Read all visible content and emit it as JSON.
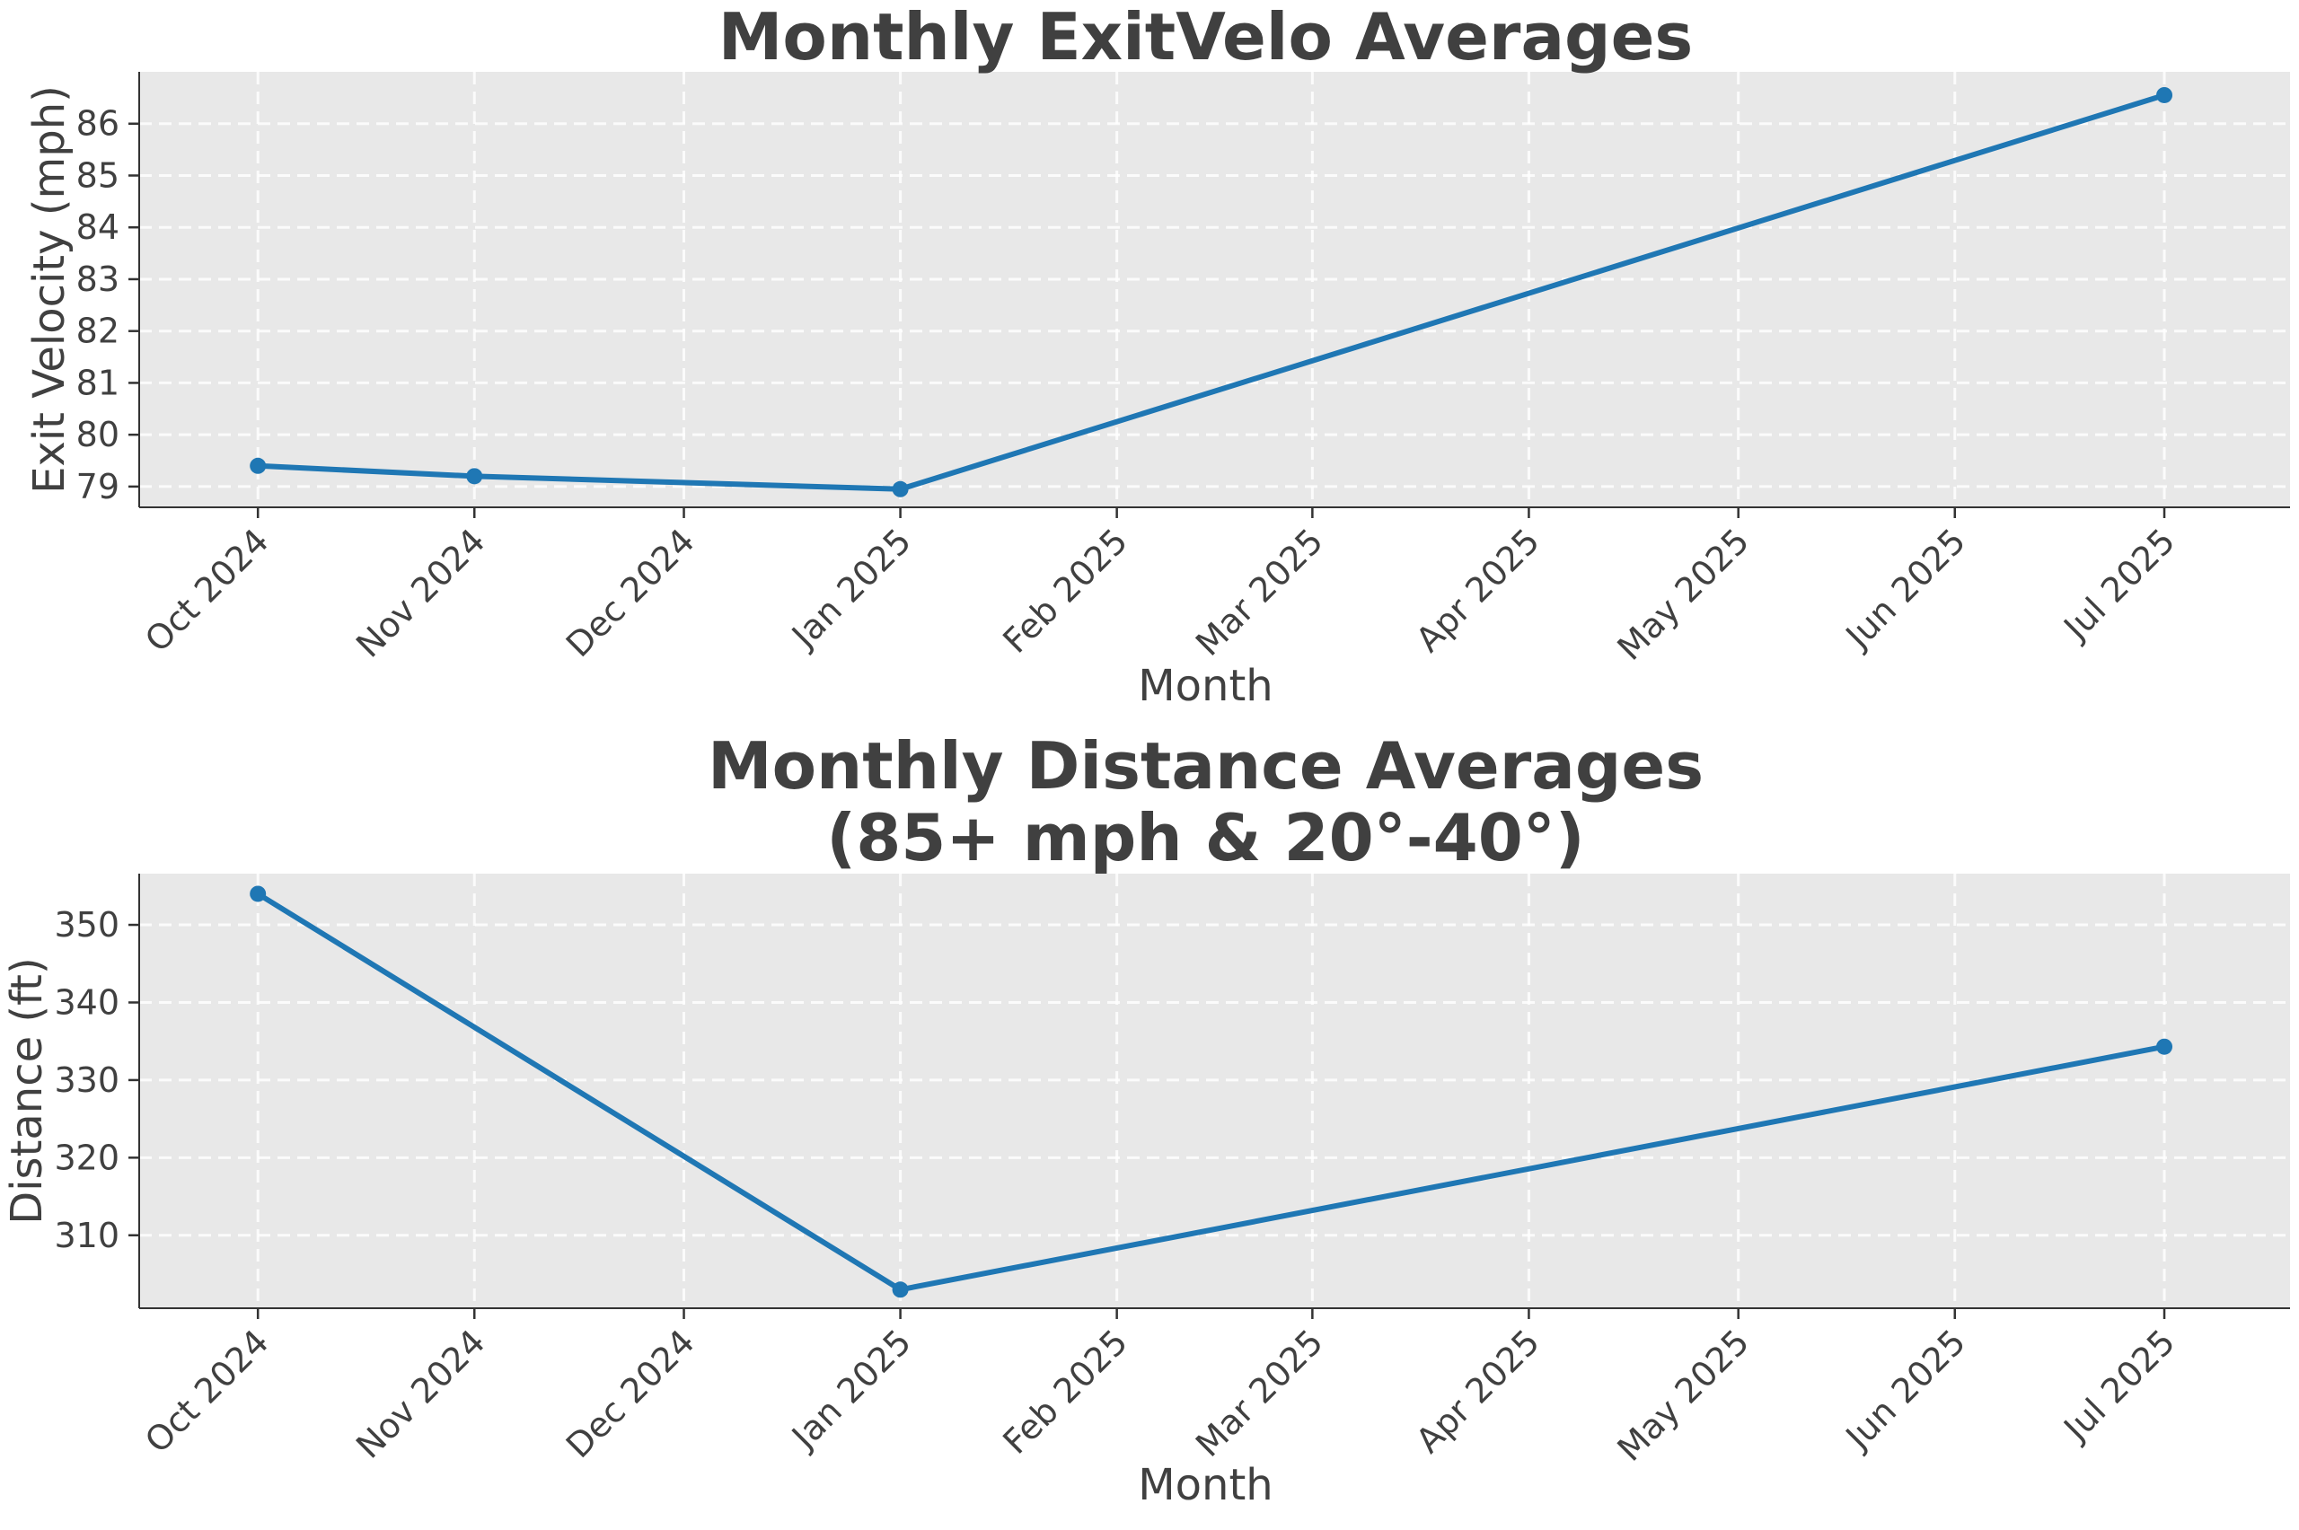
{
  "chart_data": [
    {
      "type": "line",
      "title": [
        "Monthly ExitVelo Averages"
      ],
      "xlabel": "Month",
      "ylabel": "Exit Velocity (mph)",
      "x_tick_labels": [
        "Oct 2024",
        "Nov 2024",
        "Dec 2024",
        "Jan 2025",
        "Feb 2025",
        "Mar 2025",
        "Apr 2025",
        "May 2025",
        "Jun 2025",
        "Jul 2025"
      ],
      "x_tick_dates": [
        "2024-10-01",
        "2024-11-01",
        "2024-12-01",
        "2025-01-01",
        "2025-02-01",
        "2025-03-01",
        "2025-04-01",
        "2025-05-01",
        "2025-06-01",
        "2025-07-01"
      ],
      "xlim": [
        "2024-09-14",
        "2025-07-19"
      ],
      "ylim": [
        78.6,
        87.0
      ],
      "y_ticks": [
        79,
        80,
        81,
        82,
        83,
        84,
        85,
        86
      ],
      "grid": true,
      "series": [
        {
          "color": "#1f77b4",
          "points": [
            {
              "x": "2024-10-01",
              "y": 79.4
            },
            {
              "x": "2024-11-01",
              "y": 79.2
            },
            {
              "x": "2025-01-01",
              "y": 78.95
            },
            {
              "x": "2025-07-01",
              "y": 86.55
            }
          ]
        }
      ]
    },
    {
      "type": "line",
      "title": [
        "Monthly Distance Averages",
        "(85+ mph & 20°-40°)"
      ],
      "xlabel": "Month",
      "ylabel": "Distance (ft)",
      "x_tick_labels": [
        "Oct 2024",
        "Nov 2024",
        "Dec 2024",
        "Jan 2025",
        "Feb 2025",
        "Mar 2025",
        "Apr 2025",
        "May 2025",
        "Jun 2025",
        "Jul 2025"
      ],
      "x_tick_dates": [
        "2024-10-01",
        "2024-11-01",
        "2024-12-01",
        "2025-01-01",
        "2025-02-01",
        "2025-03-01",
        "2025-04-01",
        "2025-05-01",
        "2025-06-01",
        "2025-07-01"
      ],
      "xlim": [
        "2024-09-14",
        "2025-07-19"
      ],
      "ylim": [
        300.6,
        356.6
      ],
      "y_ticks": [
        310,
        320,
        330,
        340,
        350
      ],
      "grid": true,
      "series": [
        {
          "color": "#1f77b4",
          "points": [
            {
              "x": "2024-10-01",
              "y": 354.0
            },
            {
              "x": "2025-01-01",
              "y": 303.0
            },
            {
              "x": "2025-07-01",
              "y": 334.3
            }
          ]
        }
      ]
    }
  ]
}
